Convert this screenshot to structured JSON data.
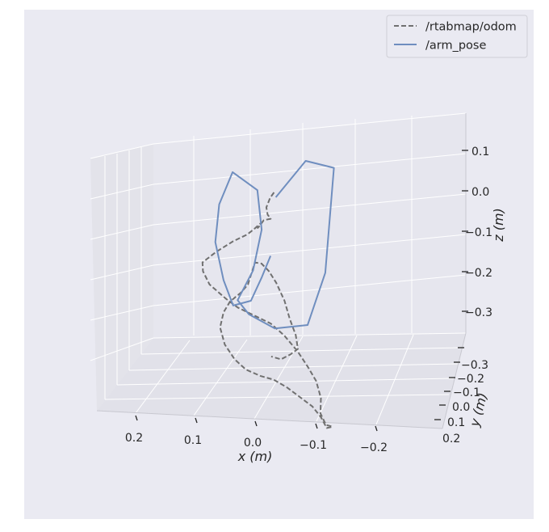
{
  "chart_data": {
    "type": "line",
    "projection": "3d",
    "grid": true,
    "legend_position": "top-right",
    "xlabel": "x (m)",
    "ylabel": "y (m)",
    "zlabel": "z (m)",
    "x_ticks": [
      "0.2",
      "0.1",
      "0.0",
      "−0.1",
      "−0.2"
    ],
    "y_ticks": [
      "−0.3",
      "−0.2",
      "−0.1",
      "0.0",
      "0.1",
      "0.2"
    ],
    "z_ticks": [
      "0.1",
      "0.0",
      "−0.1",
      "−0.2",
      "−0.3"
    ],
    "series": [
      {
        "name": "/rtabmap/odom",
        "style": "dashed",
        "color": "#707070",
        "points": [
          [
            -0.01,
            0.14,
            0.04
          ],
          [
            0.0,
            0.13,
            0.03
          ],
          [
            0.01,
            0.12,
            0.01
          ],
          [
            0.0,
            0.1,
            0.0
          ],
          [
            -0.01,
            0.1,
            -0.01
          ],
          [
            0.01,
            0.09,
            -0.01
          ],
          [
            0.02,
            0.08,
            -0.02
          ],
          [
            0.03,
            0.09,
            -0.03
          ],
          [
            0.02,
            0.1,
            -0.02
          ],
          [
            0.04,
            0.08,
            -0.03
          ],
          [
            0.06,
            0.07,
            -0.04
          ],
          [
            0.1,
            0.05,
            -0.05
          ],
          [
            0.15,
            0.03,
            -0.07
          ],
          [
            0.19,
            0.01,
            -0.09
          ],
          [
            0.18,
            -0.02,
            -0.1
          ],
          [
            0.15,
            -0.05,
            -0.12
          ],
          [
            0.09,
            -0.08,
            -0.14
          ],
          [
            0.04,
            -0.11,
            -0.15
          ],
          [
            -0.02,
            -0.13,
            -0.16
          ],
          [
            -0.08,
            -0.15,
            -0.17
          ],
          [
            -0.13,
            -0.17,
            -0.19
          ],
          [
            -0.18,
            -0.19,
            -0.22
          ],
          [
            -0.22,
            -0.21,
            -0.25
          ],
          [
            -0.25,
            -0.22,
            -0.28
          ],
          [
            -0.26,
            -0.2,
            -0.33
          ],
          [
            -0.25,
            -0.17,
            -0.38
          ],
          [
            -0.26,
            -0.14,
            -0.42
          ],
          [
            -0.27,
            -0.1,
            -0.44
          ],
          [
            -0.24,
            -0.06,
            -0.46
          ],
          [
            -0.21,
            -0.02,
            -0.45
          ],
          [
            -0.17,
            0.02,
            -0.44
          ],
          [
            -0.12,
            0.05,
            -0.43
          ],
          [
            -0.07,
            0.08,
            -0.42
          ],
          [
            -0.02,
            0.1,
            -0.41
          ],
          [
            0.03,
            0.12,
            -0.41
          ],
          [
            0.08,
            0.13,
            -0.4
          ],
          [
            0.12,
            0.14,
            -0.38
          ],
          [
            0.15,
            0.13,
            -0.34
          ],
          [
            0.16,
            0.11,
            -0.29
          ],
          [
            0.14,
            0.08,
            -0.24
          ],
          [
            0.11,
            0.05,
            -0.2
          ],
          [
            0.07,
            0.03,
            -0.17
          ],
          [
            0.04,
            0.01,
            -0.14
          ],
          [
            0.02,
            -0.02,
            -0.1
          ],
          [
            0.0,
            -0.05,
            -0.06
          ],
          [
            -0.03,
            -0.08,
            -0.05
          ],
          [
            -0.06,
            -0.1,
            -0.06
          ],
          [
            -0.09,
            -0.12,
            -0.08
          ],
          [
            -0.12,
            -0.13,
            -0.12
          ],
          [
            -0.14,
            -0.14,
            -0.16
          ],
          [
            -0.16,
            -0.14,
            -0.2
          ],
          [
            -0.17,
            -0.15,
            -0.23
          ],
          [
            -0.15,
            -0.16,
            -0.24
          ],
          [
            -0.12,
            -0.17,
            -0.25
          ],
          [
            -0.09,
            -0.18,
            -0.24
          ]
        ]
      },
      {
        "name": "/arm_pose",
        "style": "solid",
        "color": "#6f8ebf",
        "points": [
          [
            -0.01,
            0.16,
            0.02
          ],
          [
            -0.12,
            0.12,
            0.13
          ],
          [
            -0.23,
            0.06,
            0.14
          ],
          [
            -0.21,
            0.03,
            -0.11
          ],
          [
            -0.16,
            0.0,
            -0.23
          ],
          [
            -0.06,
            -0.03,
            -0.23
          ],
          [
            0.02,
            -0.05,
            -0.19
          ],
          [
            0.06,
            -0.04,
            -0.16
          ],
          [
            0.02,
            0.0,
            -0.1
          ],
          [
            0.0,
            0.03,
            -0.01
          ],
          [
            0.02,
            0.05,
            0.08
          ],
          [
            0.11,
            0.08,
            0.11
          ],
          [
            0.16,
            0.1,
            0.02
          ],
          [
            0.17,
            0.09,
            -0.07
          ],
          [
            0.14,
            0.08,
            -0.16
          ],
          [
            0.1,
            0.05,
            -0.21
          ],
          [
            0.03,
            0.01,
            -0.18
          ],
          [
            -0.02,
            -0.04,
            -0.1
          ],
          [
            -0.06,
            -0.08,
            -0.03
          ]
        ]
      }
    ]
  }
}
